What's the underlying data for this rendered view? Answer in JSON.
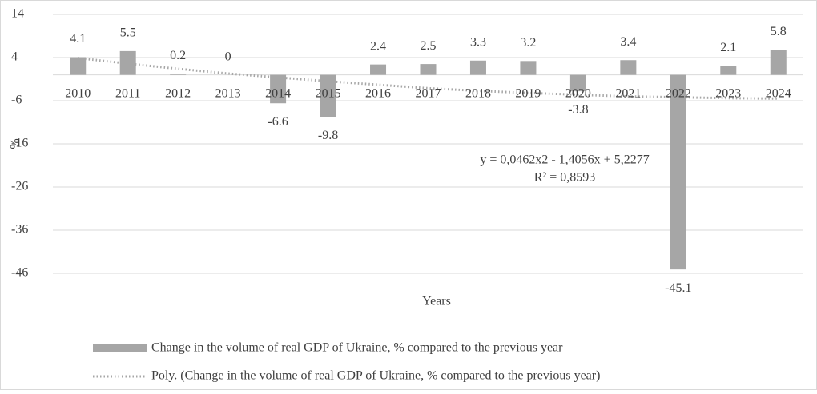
{
  "chart_data": {
    "type": "bar",
    "categories": [
      "2010",
      "2011",
      "2012",
      "2013",
      "2014",
      "2015",
      "2016",
      "2017",
      "2018",
      "2019",
      "2020",
      "2021",
      "2022",
      "2023",
      "2024"
    ],
    "series": [
      {
        "name": "Change in the volume of real GDP of Ukraine, % compared to the previous year",
        "color": "#a6a6a6",
        "type": "bar",
        "values": [
          4.1,
          5.5,
          0.2,
          0,
          -6.6,
          -9.8,
          2.4,
          2.5,
          3.3,
          3.2,
          -3.8,
          3.4,
          -45.1,
          2.1,
          5.8
        ]
      },
      {
        "name": "Poly. (Change in the volume of real GDP of Ukraine, % compared to the previous year)",
        "color": "#a6a6a6",
        "type": "line",
        "values": [
          3.9,
          2.6,
          1.4,
          0.3,
          -0.6,
          -1.5,
          -2.3,
          -3.1,
          -3.7,
          -4.2,
          -4.6,
          -5.0,
          -5.2,
          -5.4,
          -5.5
        ]
      }
    ],
    "x_label": "Years",
    "y_label": "%",
    "annotations": [
      "y = 0,0462x2 - 1,4056x + 5,2277",
      "R² = 0,8593"
    ],
    "ylim": [
      -46,
      14
    ],
    "yticks": [
      14,
      4,
      -6,
      -16,
      -26,
      -36,
      -46
    ],
    "grid": true,
    "legend": "bottom"
  }
}
